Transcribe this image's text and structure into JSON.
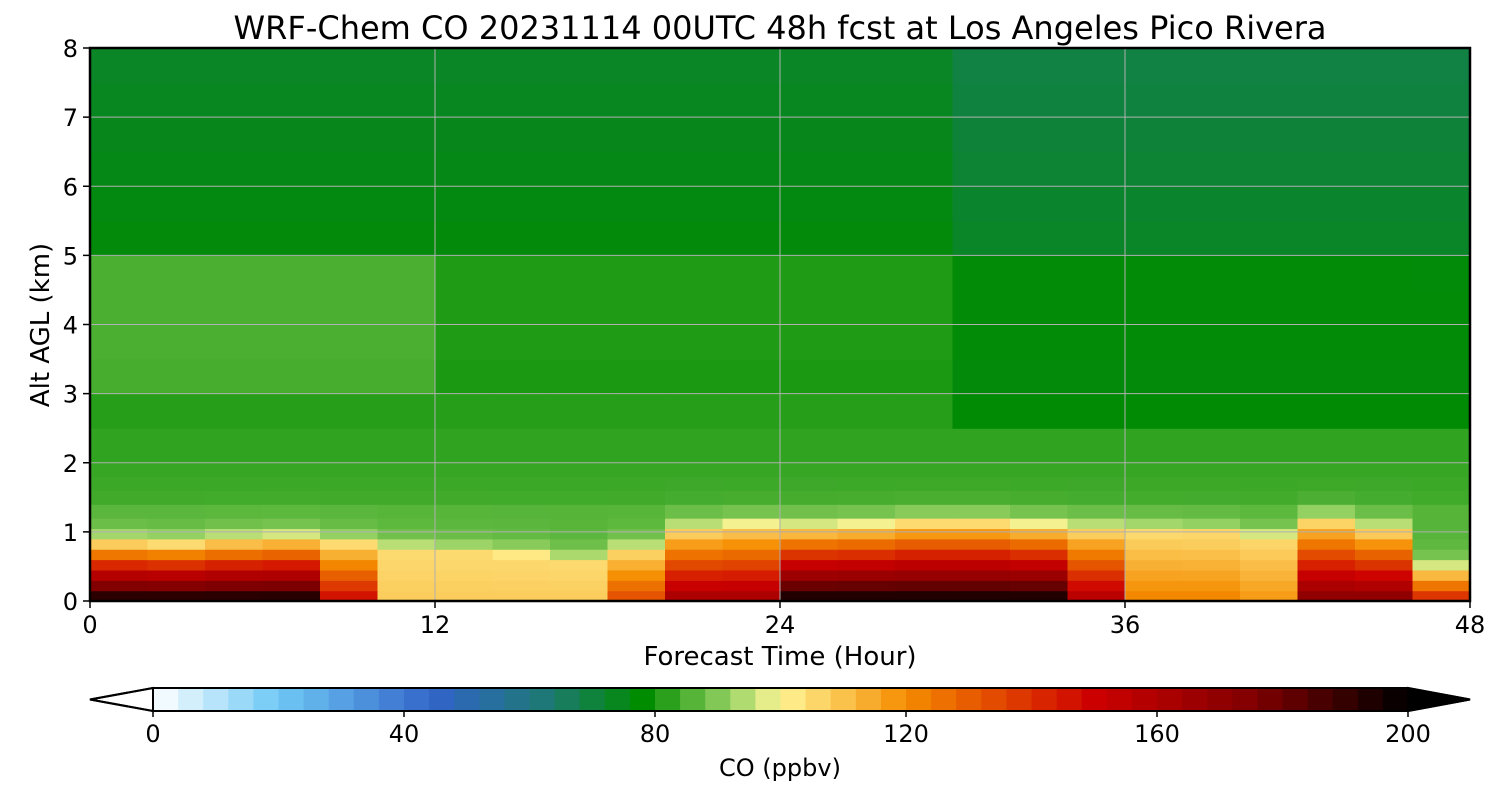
{
  "chart_data": {
    "type": "heatmap",
    "title": "WRF-Chem CO  20231114 00UTC 48h fcst at Los Angeles Pico Rivera",
    "xlabel": "Forecast Time (Hour)",
    "ylabel": "Alt AGL (km)",
    "xlim": [
      0,
      48
    ],
    "ylim": [
      0,
      8
    ],
    "x_ticks": [
      0,
      12,
      24,
      36,
      48
    ],
    "y_ticks": [
      0,
      1,
      2,
      3,
      4,
      5,
      6,
      7,
      8
    ],
    "grid": true,
    "x": [
      0,
      2,
      4,
      6,
      8,
      10,
      12,
      14,
      16,
      18,
      20,
      22,
      24,
      26,
      28,
      30,
      32,
      34,
      36,
      38,
      40,
      42,
      44,
      46,
      48
    ],
    "y": [
      0.0,
      0.15,
      0.3,
      0.45,
      0.6,
      0.75,
      0.9,
      1.05,
      1.2,
      1.4,
      1.6,
      1.8,
      2.0,
      2.5,
      3.0,
      3.5,
      4.0,
      4.5,
      5.0,
      5.5,
      6.0,
      6.5,
      7.0,
      7.5,
      8.0
    ],
    "colorbar": {
      "label": "CO  (ppbv)",
      "min": 0,
      "max": 200,
      "ticks": [
        0,
        40,
        80,
        120,
        160,
        200
      ],
      "extend": "both"
    }
  },
  "colors": {
    "grid": "#b0b0b0",
    "frame": "#000000"
  }
}
